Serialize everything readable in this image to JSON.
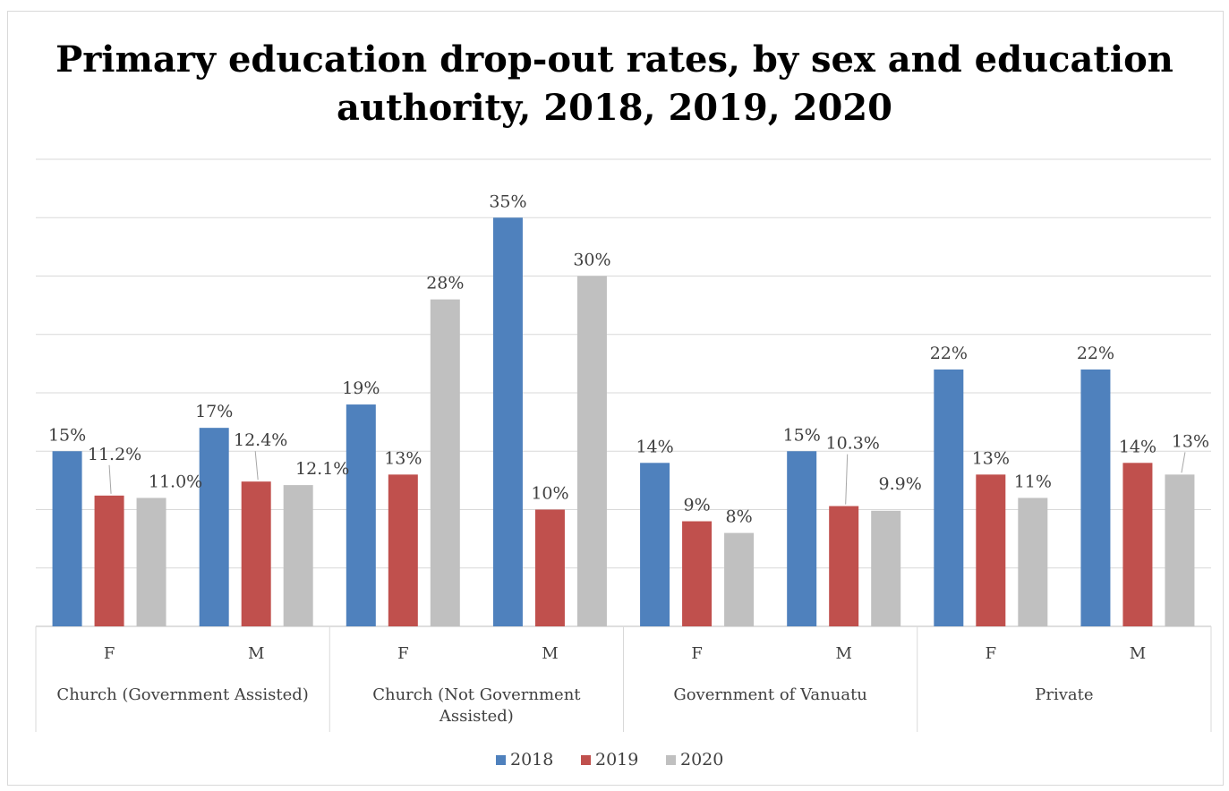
{
  "chart_data": {
    "type": "bar",
    "title": "Primary education drop-out rates, by sex and education authority, 2018, 2019, 2020",
    "groups": [
      {
        "name": "Church (Government Assisted)",
        "categories": [
          "F",
          "M"
        ]
      },
      {
        "name": "Church (Not Government Assisted)",
        "categories": [
          "F",
          "M"
        ]
      },
      {
        "name": "Government of Vanuatu",
        "categories": [
          "F",
          "M"
        ]
      },
      {
        "name": "Private",
        "categories": [
          "F",
          "M"
        ]
      }
    ],
    "categories": [
      "F",
      "M",
      "F",
      "M",
      "F",
      "M",
      "F",
      "M"
    ],
    "series": [
      {
        "name": "2018",
        "color": "#4f81bd",
        "values": [
          15,
          17,
          19,
          35,
          14,
          15,
          22,
          22
        ],
        "labels": [
          "15%",
          "17%",
          "19%",
          "35%",
          "14%",
          "15%",
          "22%",
          "22%"
        ]
      },
      {
        "name": "2019",
        "color": "#c0504d",
        "values": [
          11.2,
          12.4,
          13,
          10,
          9,
          10.3,
          13,
          14
        ],
        "labels": [
          "11.2%",
          "12.4%",
          "13%",
          "10%",
          "9%",
          "10.3%",
          "13%",
          "14%"
        ]
      },
      {
        "name": "2020",
        "color": "#c0c0c0",
        "values": [
          11.0,
          12.1,
          28,
          30,
          8,
          9.9,
          11,
          13
        ],
        "labels": [
          "11.0%",
          "12.1%",
          "28%",
          "30%",
          "8%",
          "9.9%",
          "11%",
          "13%"
        ]
      }
    ],
    "ylim": [
      0,
      40
    ],
    "grid": true,
    "legend_position": "bottom",
    "xlabel": "",
    "ylabel": ""
  }
}
